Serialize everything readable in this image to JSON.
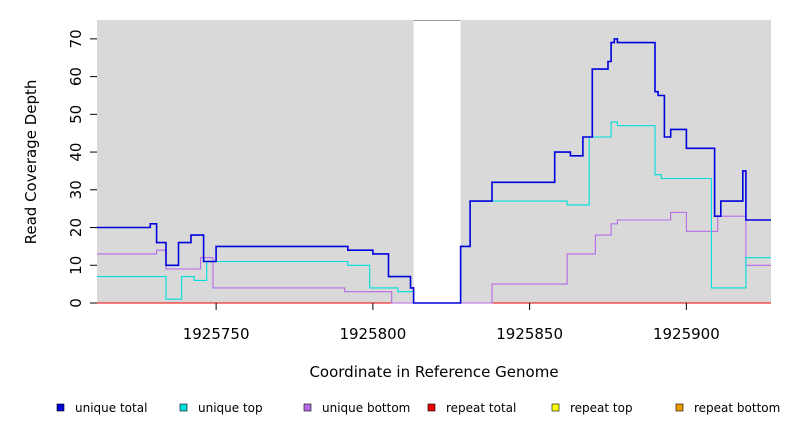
{
  "chart_data": {
    "type": "line",
    "title": "",
    "xlabel": "Coordinate in Reference Genome",
    "ylabel": "Read Coverage Depth",
    "xlim": [
      1925712,
      1925927
    ],
    "ylim": [
      0,
      75
    ],
    "xticks": [
      1925750,
      1925800,
      1925850,
      1925900
    ],
    "xtick_labels": [
      "1925750",
      "1925800",
      "1925850",
      "1925900"
    ],
    "yticks": [
      0,
      10,
      20,
      30,
      40,
      50,
      60,
      70
    ],
    "ytick_labels": [
      "0",
      "10",
      "20",
      "30",
      "40",
      "50",
      "60",
      "70"
    ],
    "gap_region": [
      1925813,
      1925828
    ],
    "background_color": "#d9d9d9",
    "legend_position": "bottom",
    "series": [
      {
        "name": "unique total",
        "color": "#0000dd",
        "x": [
          1925712,
          1925729,
          1925731,
          1925734,
          1925738,
          1925742,
          1925746,
          1925750,
          1925790,
          1925792,
          1925800,
          1925805,
          1925812,
          1925813,
          1925828,
          1925831,
          1925838,
          1925858,
          1925863,
          1925867,
          1925870,
          1925875,
          1925876,
          1925877,
          1925878,
          1925879,
          1925890,
          1925891,
          1925893,
          1925895,
          1925900,
          1925909,
          1925911,
          1925917,
          1925918,
          1925919,
          1925927
        ],
        "y": [
          20,
          21,
          16,
          10,
          16,
          18,
          11,
          15,
          15,
          14,
          13,
          7,
          4,
          0,
          15,
          27,
          32,
          40,
          39,
          44,
          62,
          64,
          69,
          70,
          69,
          69,
          56,
          55,
          44,
          46,
          41,
          23,
          27,
          27,
          35,
          22,
          22
        ]
      },
      {
        "name": "unique top",
        "color": "#00dddd",
        "x": [
          1925712,
          1925734,
          1925739,
          1925741,
          1925743,
          1925747,
          1925792,
          1925799,
          1925802,
          1925808,
          1925813,
          1925828,
          1925831,
          1925838,
          1925862,
          1925869,
          1925876,
          1925878,
          1925889,
          1925890,
          1925892,
          1925908,
          1925918,
          1925919,
          1925927
        ],
        "y": [
          7,
          1,
          7,
          7,
          6,
          11,
          10,
          4,
          4,
          3,
          0,
          15,
          27,
          27,
          26,
          44,
          48,
          47,
          47,
          34,
          33,
          4,
          4,
          12,
          12
        ]
      },
      {
        "name": "unique bottom",
        "color": "#b66be8",
        "x": [
          1925712,
          1925731,
          1925734,
          1925745,
          1925749,
          1925791,
          1925806,
          1925828,
          1925838,
          1925862,
          1925871,
          1925876,
          1925878,
          1925895,
          1925900,
          1925910,
          1925919,
          1925927
        ],
        "y": [
          13,
          14,
          9,
          12,
          4,
          3,
          0,
          0,
          5,
          13,
          18,
          21,
          22,
          24,
          19,
          23,
          10,
          10
        ]
      },
      {
        "name": "repeat total",
        "color": "#ee0000",
        "x": [
          1925712,
          1925927
        ],
        "y": [
          0,
          0
        ]
      },
      {
        "name": "repeat top",
        "color": "#ffff00",
        "x": [
          1925712,
          1925927
        ],
        "y": [
          0,
          0
        ]
      },
      {
        "name": "repeat bottom",
        "color": "#ee9900",
        "x": [
          1925712,
          1925927
        ],
        "y": [
          0,
          0
        ]
      }
    ]
  }
}
